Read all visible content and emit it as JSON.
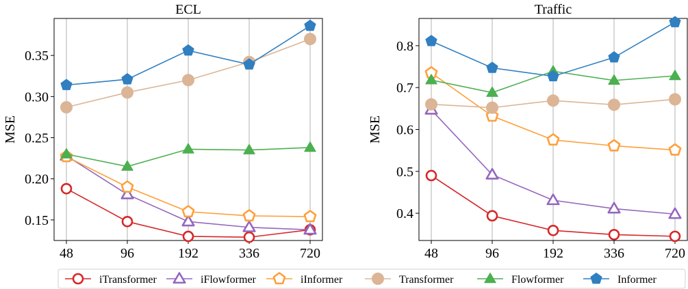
{
  "chart_data": [
    {
      "type": "line",
      "title": "ECL",
      "xlabel": "",
      "ylabel": "MSE",
      "categories": [
        "48",
        "96",
        "192",
        "336",
        "720"
      ],
      "ylim": [
        0.125,
        0.395
      ],
      "yticks": [
        "0.15",
        "0.20",
        "0.25",
        "0.30",
        "0.35"
      ],
      "grid": "vertical",
      "series": [
        {
          "name": "iTransformer",
          "values": [
            0.188,
            0.148,
            0.13,
            0.129,
            0.138
          ]
        },
        {
          "name": "iFlowformer",
          "values": [
            0.228,
            0.181,
            0.148,
            0.141,
            0.138
          ]
        },
        {
          "name": "iInformer",
          "values": [
            0.227,
            0.19,
            0.16,
            0.155,
            0.154
          ]
        },
        {
          "name": "Transformer",
          "values": [
            0.287,
            0.305,
            0.32,
            0.342,
            0.37
          ]
        },
        {
          "name": "Flowformer",
          "values": [
            0.23,
            0.215,
            0.236,
            0.235,
            0.238
          ]
        },
        {
          "name": "Informer",
          "values": [
            0.314,
            0.321,
            0.356,
            0.339,
            0.386
          ]
        }
      ]
    },
    {
      "type": "line",
      "title": "Traffic",
      "xlabel": "",
      "ylabel": "MSE",
      "categories": [
        "48",
        "96",
        "192",
        "336",
        "720"
      ],
      "ylim": [
        0.335,
        0.865
      ],
      "yticks": [
        "0.4",
        "0.5",
        "0.6",
        "0.7",
        "0.8"
      ],
      "grid": "vertical",
      "series": [
        {
          "name": "iTransformer",
          "values": [
            0.49,
            0.394,
            0.359,
            0.349,
            0.345
          ]
        },
        {
          "name": "iFlowformer",
          "values": [
            0.647,
            0.492,
            0.431,
            0.411,
            0.398
          ]
        },
        {
          "name": "iInformer",
          "values": [
            0.735,
            0.632,
            0.575,
            0.561,
            0.551
          ]
        },
        {
          "name": "Transformer",
          "values": [
            0.66,
            0.652,
            0.669,
            0.659,
            0.672
          ]
        },
        {
          "name": "Flowformer",
          "values": [
            0.718,
            0.688,
            0.739,
            0.717,
            0.728
          ]
        },
        {
          "name": "Informer",
          "values": [
            0.811,
            0.747,
            0.727,
            0.772,
            0.856
          ]
        }
      ]
    }
  ],
  "legend": {
    "placement": "bottom",
    "entries": [
      {
        "name": "iTransformer",
        "color": "#d62728",
        "marker": "circle-open"
      },
      {
        "name": "iFlowformer",
        "color": "#9467bd",
        "marker": "triangle-open"
      },
      {
        "name": "iInformer",
        "color": "#ff9f3a",
        "marker": "pentagon-open"
      },
      {
        "name": "Transformer",
        "color": "#dbb596",
        "marker": "circle-filled"
      },
      {
        "name": "Flowformer",
        "color": "#4caf50",
        "marker": "triangle-filled"
      },
      {
        "name": "Informer",
        "color": "#2f7fc1",
        "marker": "pentagon-filled"
      }
    ]
  }
}
